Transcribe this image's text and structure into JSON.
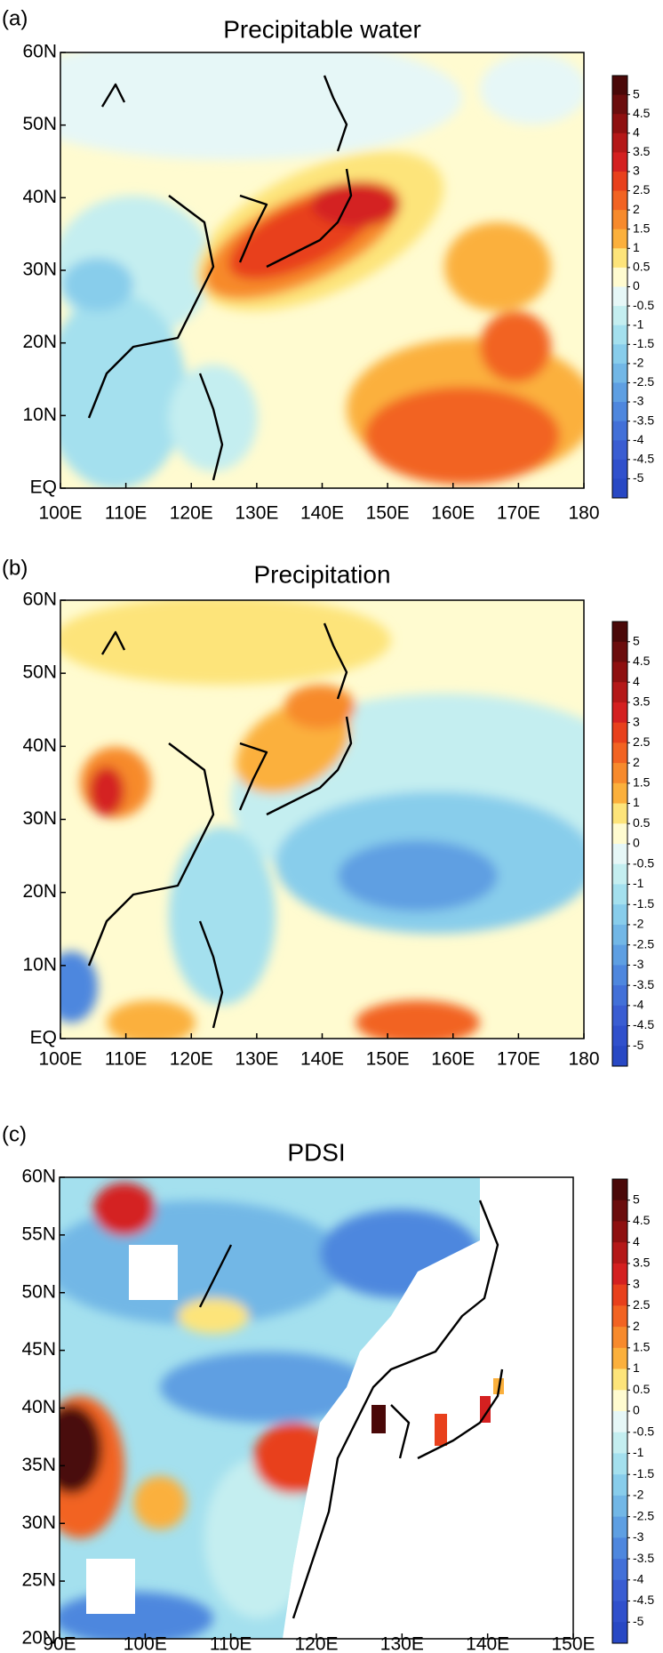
{
  "chart_data": [
    {
      "type": "contour-map",
      "panel_label": "(a)",
      "title": "Precipitable water",
      "xlim": [
        100,
        180
      ],
      "xticks": [
        {
          "value": 100,
          "label": "100E"
        },
        {
          "value": 110,
          "label": "110E"
        },
        {
          "value": 120,
          "label": "120E"
        },
        {
          "value": 130,
          "label": "130E"
        },
        {
          "value": 140,
          "label": "140E"
        },
        {
          "value": 150,
          "label": "150E"
        },
        {
          "value": 160,
          "label": "160E"
        },
        {
          "value": 170,
          "label": "170E"
        },
        {
          "value": 180,
          "label": "180"
        }
      ],
      "ylim": [
        0,
        60
      ],
      "yticks": [
        {
          "value": 0,
          "label": "EQ"
        },
        {
          "value": 10,
          "label": "10N"
        },
        {
          "value": 20,
          "label": "20N"
        },
        {
          "value": 30,
          "label": "30N"
        },
        {
          "value": 40,
          "label": "40N"
        },
        {
          "value": 50,
          "label": "50N"
        },
        {
          "value": 60,
          "label": "60N"
        }
      ],
      "colorbar": {
        "levels": [
          5,
          4.5,
          4,
          3.5,
          3,
          2.5,
          2,
          1.5,
          1,
          0.5,
          0,
          -0.5,
          -1,
          -1.5,
          -2,
          -2.5,
          -3,
          -3.5,
          -4,
          -4.5,
          -5
        ],
        "colors": [
          "#4a0808",
          "#6b0d0d",
          "#8e1010",
          "#b41818",
          "#d42020",
          "#e8401c",
          "#f26322",
          "#f78a2c",
          "#fbb03c",
          "#fde47a",
          "#fffbd0",
          "#e6f7f7",
          "#c4eef0",
          "#a4e0ee",
          "#88cdeb",
          "#72b7e6",
          "#5e9fe2",
          "#4e87de",
          "#4270d8",
          "#3a5dd2",
          "#3050cc",
          "#2848c4"
        ]
      }
    },
    {
      "type": "contour-map",
      "panel_label": "(b)",
      "title": "Precipitation",
      "xlim": [
        100,
        180
      ],
      "xticks": [
        {
          "value": 100,
          "label": "100E"
        },
        {
          "value": 110,
          "label": "110E"
        },
        {
          "value": 120,
          "label": "120E"
        },
        {
          "value": 130,
          "label": "130E"
        },
        {
          "value": 140,
          "label": "140E"
        },
        {
          "value": 150,
          "label": "150E"
        },
        {
          "value": 160,
          "label": "160E"
        },
        {
          "value": 170,
          "label": "170E"
        },
        {
          "value": 180,
          "label": "180"
        }
      ],
      "ylim": [
        0,
        60
      ],
      "yticks": [
        {
          "value": 0,
          "label": "EQ"
        },
        {
          "value": 10,
          "label": "10N"
        },
        {
          "value": 20,
          "label": "20N"
        },
        {
          "value": 30,
          "label": "30N"
        },
        {
          "value": 40,
          "label": "40N"
        },
        {
          "value": 50,
          "label": "50N"
        },
        {
          "value": 60,
          "label": "60N"
        }
      ],
      "colorbar": {
        "levels": [
          5,
          4.5,
          4,
          3.5,
          3,
          2.5,
          2,
          1.5,
          1,
          0.5,
          0,
          -0.5,
          -1,
          -1.5,
          -2,
          -2.5,
          -3,
          -3.5,
          -4,
          -4.5,
          -5
        ],
        "colors": [
          "#4a0808",
          "#6b0d0d",
          "#8e1010",
          "#b41818",
          "#d42020",
          "#e8401c",
          "#f26322",
          "#f78a2c",
          "#fbb03c",
          "#fde47a",
          "#fffbd0",
          "#e6f7f7",
          "#c4eef0",
          "#a4e0ee",
          "#88cdeb",
          "#72b7e6",
          "#5e9fe2",
          "#4e87de",
          "#4270d8",
          "#3a5dd2",
          "#3050cc",
          "#2848c4"
        ]
      }
    },
    {
      "type": "contour-map",
      "panel_label": "(c)",
      "title": "PDSI",
      "xlim": [
        90,
        150
      ],
      "xticks": [
        {
          "value": 90,
          "label": "90E"
        },
        {
          "value": 100,
          "label": "100E"
        },
        {
          "value": 110,
          "label": "110E"
        },
        {
          "value": 120,
          "label": "120E"
        },
        {
          "value": 130,
          "label": "130E"
        },
        {
          "value": 140,
          "label": "140E"
        },
        {
          "value": 150,
          "label": "150E"
        }
      ],
      "ylim": [
        20,
        60
      ],
      "yticks": [
        {
          "value": 20,
          "label": "20N"
        },
        {
          "value": 25,
          "label": "25N"
        },
        {
          "value": 30,
          "label": "30N"
        },
        {
          "value": 35,
          "label": "35N"
        },
        {
          "value": 40,
          "label": "40N"
        },
        {
          "value": 45,
          "label": "45N"
        },
        {
          "value": 50,
          "label": "50N"
        },
        {
          "value": 55,
          "label": "55N"
        },
        {
          "value": 60,
          "label": "60N"
        }
      ],
      "colorbar": {
        "levels": [
          5,
          4.5,
          4,
          3.5,
          3,
          2.5,
          2,
          1.5,
          1,
          0.5,
          0,
          -0.5,
          -1,
          -1.5,
          -2,
          -2.5,
          -3,
          -3.5,
          -4,
          -4.5,
          -5
        ],
        "colors": [
          "#4a0808",
          "#6b0d0d",
          "#8e1010",
          "#b41818",
          "#d42020",
          "#e8401c",
          "#f26322",
          "#f78a2c",
          "#fbb03c",
          "#fde47a",
          "#fffbd0",
          "#e6f7f7",
          "#c4eef0",
          "#a4e0ee",
          "#88cdeb",
          "#72b7e6",
          "#5e9fe2",
          "#4e87de",
          "#4270d8",
          "#3a5dd2",
          "#3050cc",
          "#2848c4"
        ]
      }
    }
  ]
}
